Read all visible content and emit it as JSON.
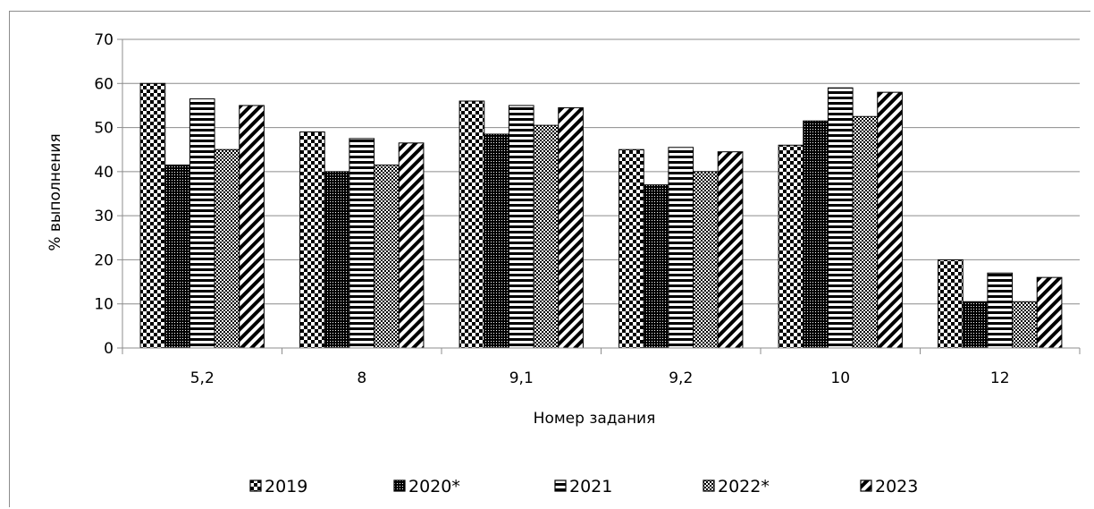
{
  "chart_data": {
    "type": "bar",
    "categories": [
      "5,2",
      "8",
      "9,1",
      "9,2",
      "10",
      "12"
    ],
    "series": [
      {
        "name": "2019",
        "values": [
          60,
          49,
          56,
          45,
          46,
          20
        ]
      },
      {
        "name": "2020*",
        "values": [
          41.5,
          40,
          48.5,
          37,
          51.5,
          10.5
        ]
      },
      {
        "name": "2021",
        "values": [
          56.5,
          47.5,
          55,
          45.5,
          59,
          17
        ]
      },
      {
        "name": "2022*",
        "values": [
          45,
          41.5,
          50.5,
          40,
          52.5,
          10.5
        ]
      },
      {
        "name": "2023",
        "values": [
          55,
          46.5,
          54.5,
          44.5,
          58,
          16
        ]
      }
    ],
    "xlabel": "Номер задания",
    "ylabel": "% выполнения",
    "ylim": [
      0,
      70
    ],
    "yticks": [
      0,
      10,
      20,
      30,
      40,
      50,
      60,
      70
    ],
    "grid": true,
    "legend": "bottom"
  }
}
